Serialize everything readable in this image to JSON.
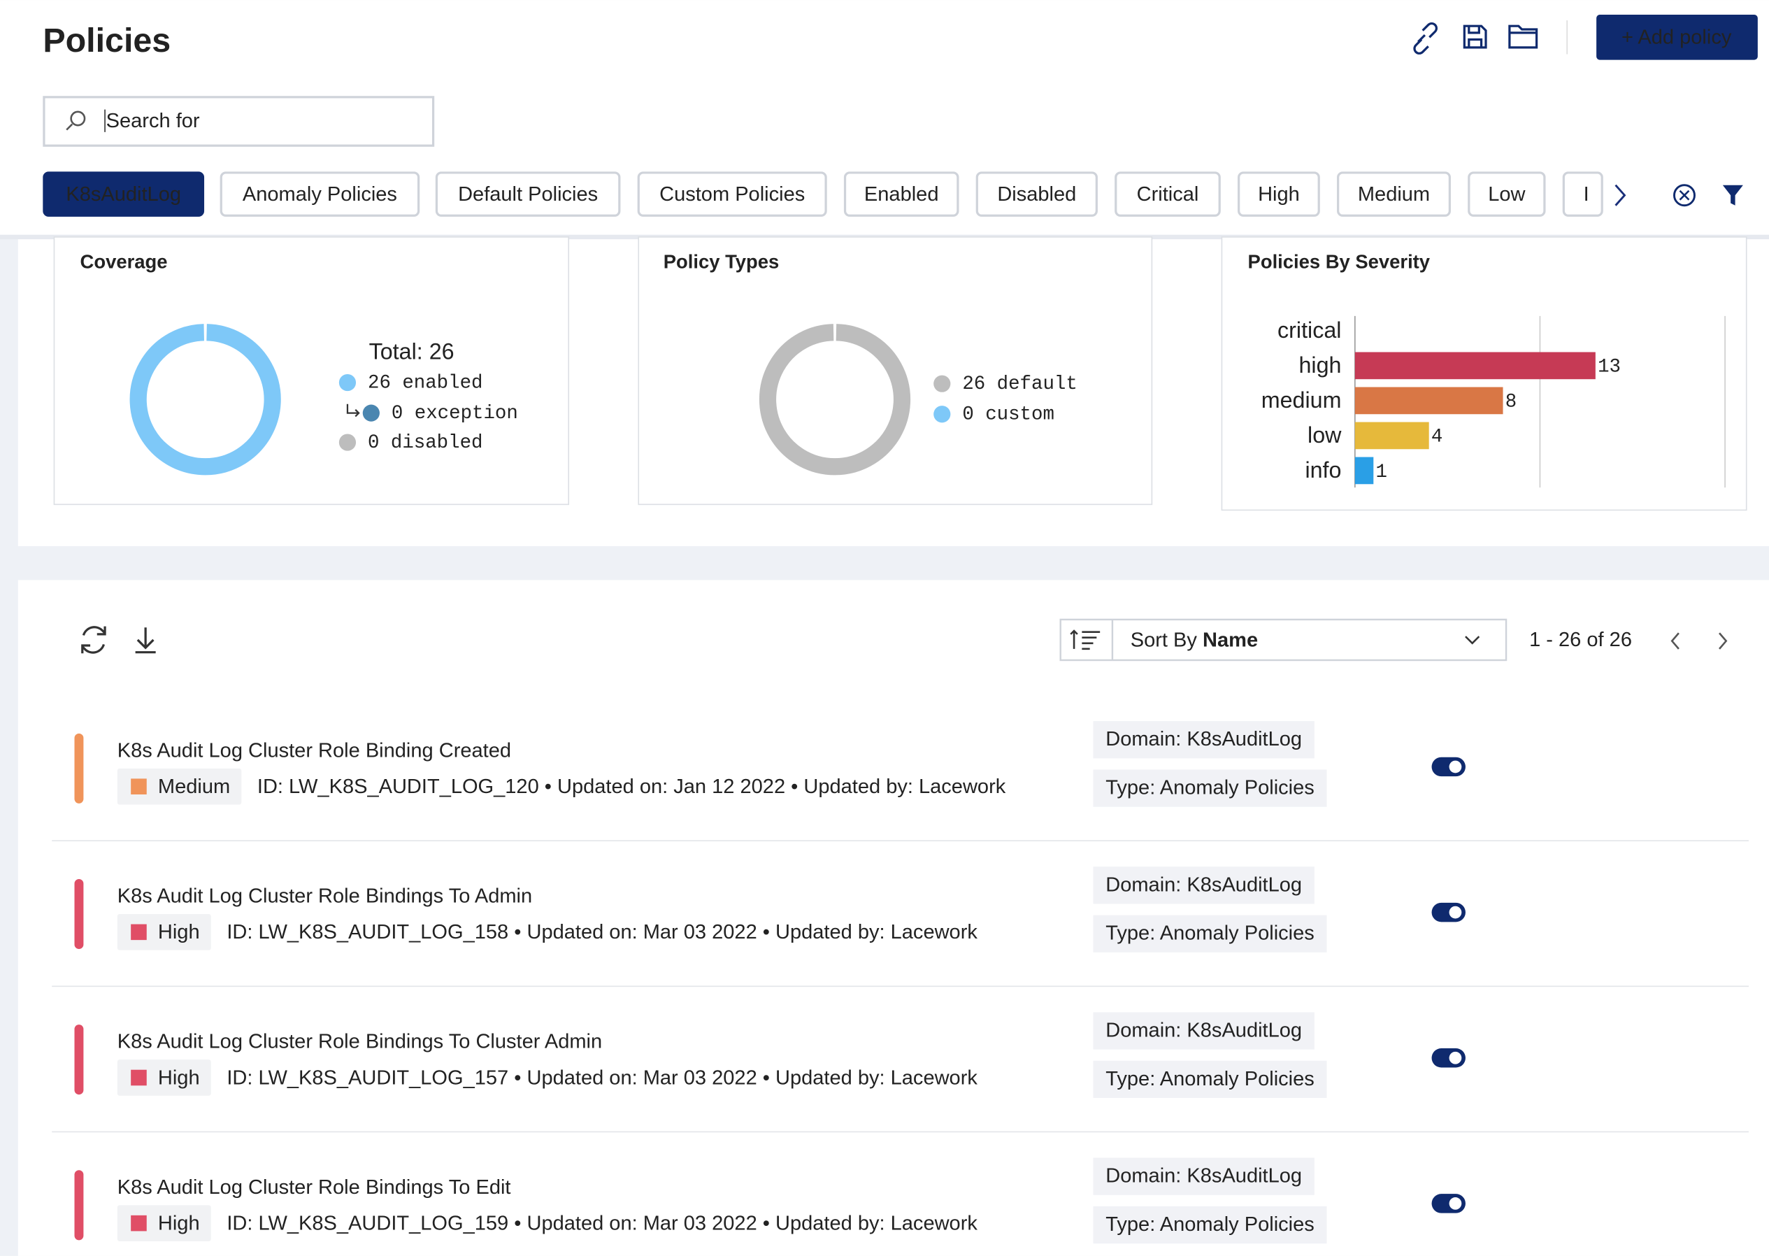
{
  "header": {
    "title": "Policies",
    "add_button": "+ Add policy"
  },
  "search": {
    "placeholder": "Search for"
  },
  "filters": [
    "K8sAuditLog",
    "Anomaly Policies",
    "Default Policies",
    "Custom Policies",
    "Enabled",
    "Disabled",
    "Critical",
    "High",
    "Medium",
    "Low",
    "I"
  ],
  "chart_data": [
    {
      "type": "donut",
      "title": "Coverage",
      "total_label": "Total: 26",
      "categories": [
        "enabled",
        "exception",
        "disabled"
      ],
      "values": [
        26,
        0,
        0
      ],
      "value_labels": [
        "26 enabled",
        "0 exception",
        "0 disabled"
      ],
      "colors": [
        "#7ec8f8",
        "#4a86b0",
        "#bdbdbd"
      ]
    },
    {
      "type": "donut",
      "title": "Policy Types",
      "categories": [
        "default",
        "custom"
      ],
      "values": [
        26,
        0
      ],
      "value_labels": [
        "26 default",
        "0 custom"
      ],
      "colors": [
        "#bdbdbd",
        "#7ec8f8"
      ]
    },
    {
      "type": "hbar",
      "title": "Policies By Severity",
      "categories": [
        "critical",
        "high",
        "medium",
        "low",
        "info"
      ],
      "values": [
        0,
        13,
        8,
        4,
        1
      ],
      "colors": [
        "#8b1e3f",
        "#c63a55",
        "#d97745",
        "#e6b93b",
        "#2a9fe6"
      ],
      "xlim": [
        0,
        20
      ],
      "xticks": [
        0,
        10,
        20
      ],
      "grid": true
    }
  ],
  "list_toolbar": {
    "sort_prefix": "Sort By",
    "sort_field": "Name",
    "pagination": "1 - 26 of 26"
  },
  "policies": [
    {
      "title": "K8s Audit Log Cluster Role Binding Created",
      "severity": "Medium",
      "color": "#f0945a",
      "meta": "ID: LW_K8S_AUDIT_LOG_120 • Updated on: Jan 12 2022 • Updated by: Lacework",
      "domain": "Domain: K8sAuditLog",
      "type": "Type: Anomaly Policies",
      "enabled": true
    },
    {
      "title": "K8s Audit Log Cluster Role Bindings To Admin",
      "severity": "High",
      "color": "#e04e66",
      "meta": "ID: LW_K8S_AUDIT_LOG_158 • Updated on: Mar 03 2022 • Updated by: Lacework",
      "domain": "Domain: K8sAuditLog",
      "type": "Type: Anomaly Policies",
      "enabled": true
    },
    {
      "title": "K8s Audit Log Cluster Role Bindings To Cluster Admin",
      "severity": "High",
      "color": "#e04e66",
      "meta": "ID: LW_K8S_AUDIT_LOG_157 • Updated on: Mar 03 2022 • Updated by: Lacework",
      "domain": "Domain: K8sAuditLog",
      "type": "Type: Anomaly Policies",
      "enabled": true
    },
    {
      "title": "K8s Audit Log Cluster Role Bindings To Edit",
      "severity": "High",
      "color": "#e04e66",
      "meta": "ID: LW_K8S_AUDIT_LOG_159 • Updated on: Mar 03 2022 • Updated by: Lacework",
      "domain": "Domain: K8sAuditLog",
      "type": "Type: Anomaly Policies",
      "enabled": true
    }
  ]
}
